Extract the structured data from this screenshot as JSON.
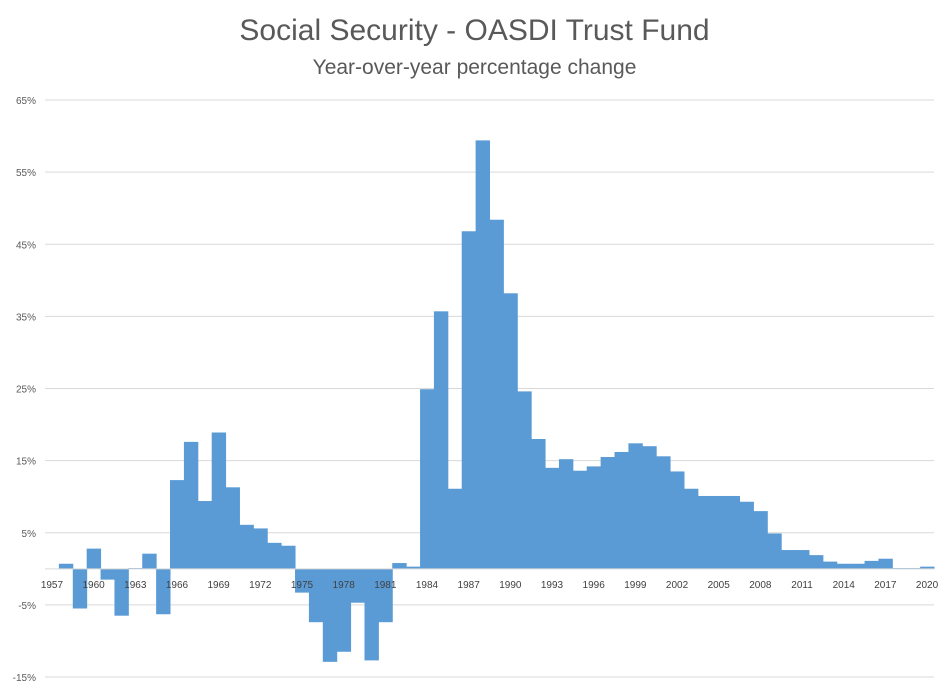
{
  "chart_data": {
    "type": "bar",
    "title": "Social Security - OASDI Trust Fund",
    "subtitle": "Year-over-year percentage change",
    "xlabel": "",
    "ylabel": "",
    "ylim": [
      -15,
      65
    ],
    "yticks": [
      -15,
      -5,
      5,
      15,
      25,
      35,
      45,
      55,
      65
    ],
    "ytick_labels": [
      "-15%",
      "-5%",
      "5%",
      "15%",
      "25%",
      "35%",
      "45%",
      "55%",
      "65%"
    ],
    "grid": true,
    "bar_color": "#5b9bd5",
    "xtick_labels": [
      "1957",
      "1960",
      "1963",
      "1966",
      "1969",
      "1972",
      "1975",
      "1978",
      "1981",
      "1984",
      "1987",
      "1990",
      "1993",
      "1996",
      "1999",
      "2002",
      "2005",
      "2008",
      "2011",
      "2014",
      "2017",
      "2020"
    ],
    "categories": [
      1957,
      1958,
      1959,
      1960,
      1961,
      1962,
      1963,
      1964,
      1965,
      1966,
      1967,
      1968,
      1969,
      1970,
      1971,
      1972,
      1973,
      1974,
      1975,
      1976,
      1977,
      1978,
      1979,
      1980,
      1981,
      1982,
      1983,
      1984,
      1985,
      1986,
      1987,
      1988,
      1989,
      1990,
      1991,
      1992,
      1993,
      1994,
      1995,
      1996,
      1997,
      1998,
      1999,
      2000,
      2001,
      2002,
      2003,
      2004,
      2005,
      2006,
      2007,
      2008,
      2009,
      2010,
      2011,
      2012,
      2013,
      2014,
      2015,
      2016,
      2017,
      2018,
      2019,
      2020
    ],
    "values": [
      0,
      0.7,
      -5.5,
      2.8,
      -1.5,
      -6.5,
      0.1,
      2.1,
      -6.3,
      12.3,
      17.6,
      9.4,
      18.9,
      11.3,
      6.1,
      5.6,
      3.6,
      3.2,
      -3.3,
      -7.4,
      -12.9,
      -11.5,
      -4.7,
      -12.7,
      -7.4,
      0.8,
      0.3,
      24.9,
      35.7,
      11.1,
      46.8,
      59.4,
      48.4,
      38.2,
      24.6,
      18.0,
      14.0,
      15.2,
      13.6,
      14.2,
      15.5,
      16.2,
      17.4,
      17.0,
      15.6,
      13.5,
      11.1,
      10.1,
      10.1,
      10.1,
      9.3,
      8.0,
      4.9,
      2.6,
      2.6,
      1.9,
      1.0,
      0.7,
      0.7,
      1.1,
      1.4,
      0.1,
      0.1,
      0.3
    ]
  }
}
